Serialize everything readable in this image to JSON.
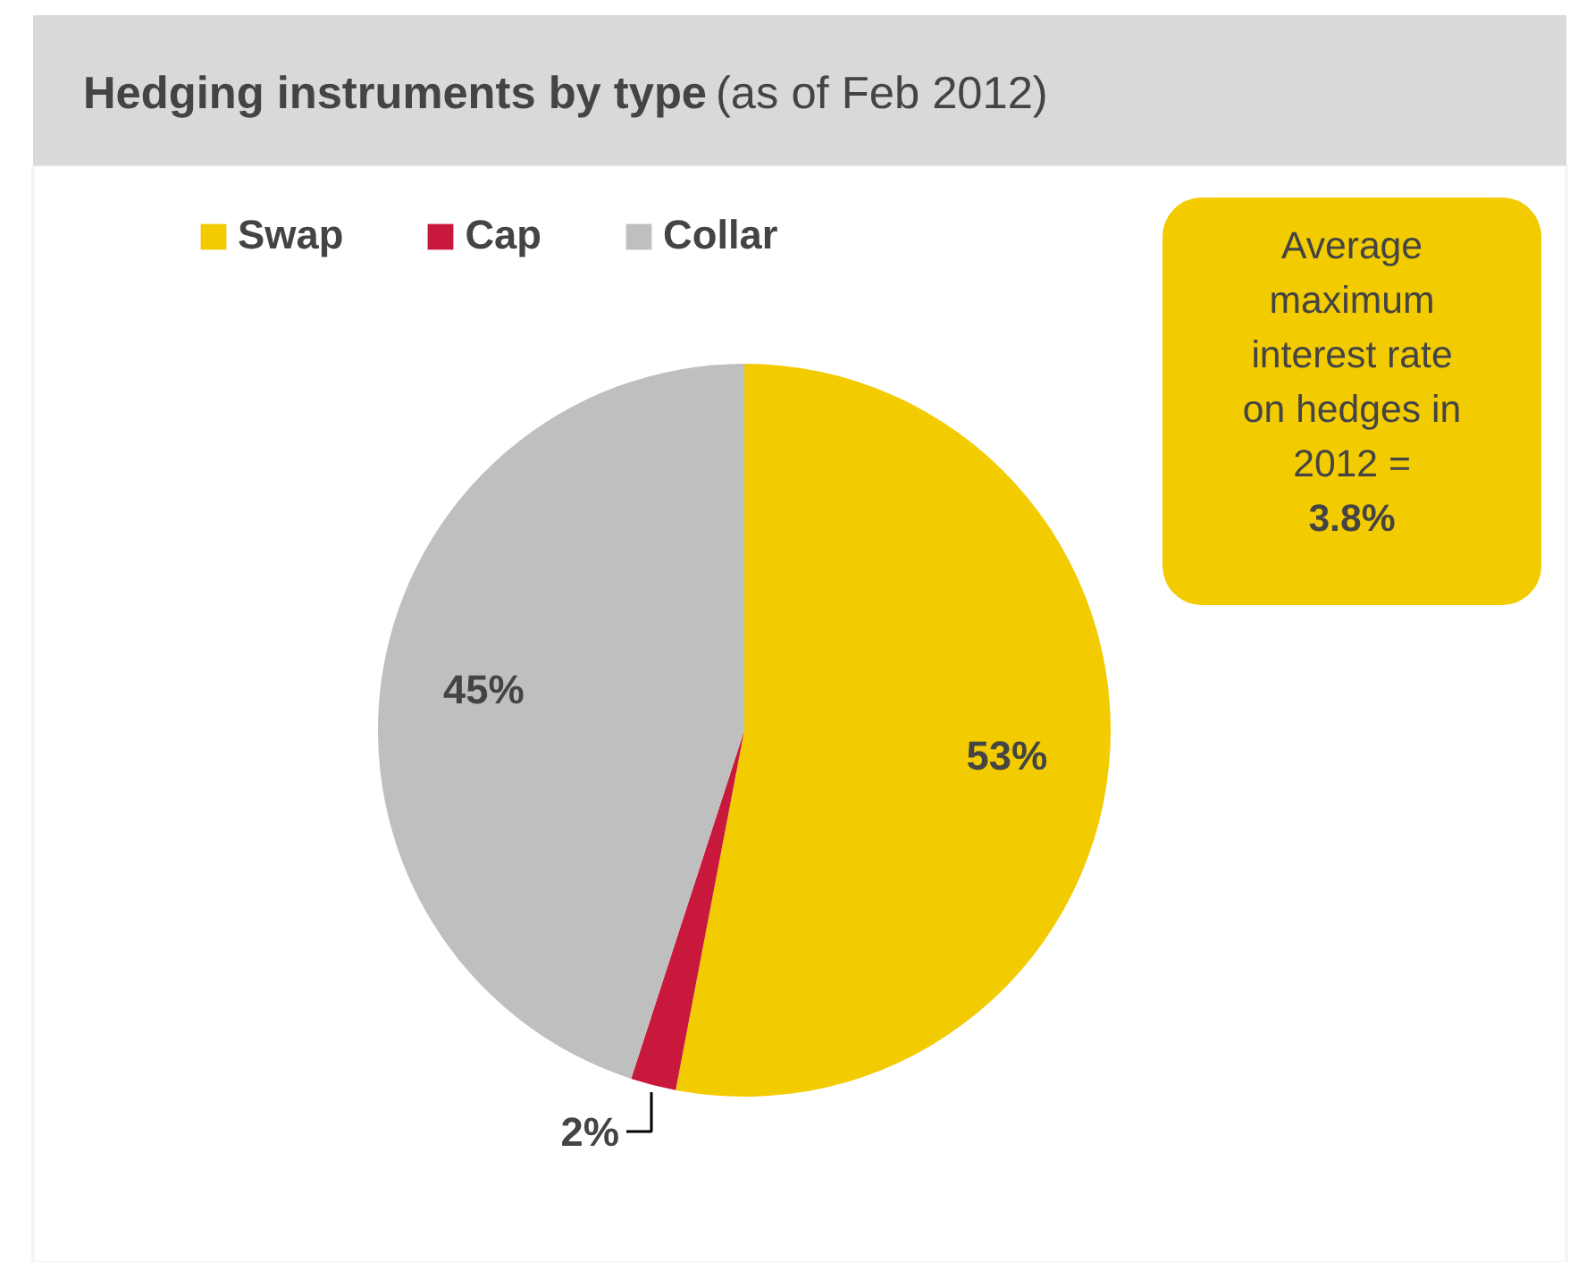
{
  "chart_data": {
    "type": "pie",
    "title": "Hedging instruments by type",
    "subtitle": "(as of Feb 2012)",
    "categories": [
      "Swap",
      "Cap",
      "Collar"
    ],
    "values": [
      53,
      2,
      45
    ],
    "colors": [
      "#f2cb00",
      "#c8193c",
      "#bfbfbf"
    ],
    "value_labels": [
      "53%",
      "2%",
      "45%"
    ],
    "legend": "top left",
    "annotations": [
      "Average\nmaximum\ninterest rate\non hedges in\n2012 =\n3.8%"
    ]
  }
}
